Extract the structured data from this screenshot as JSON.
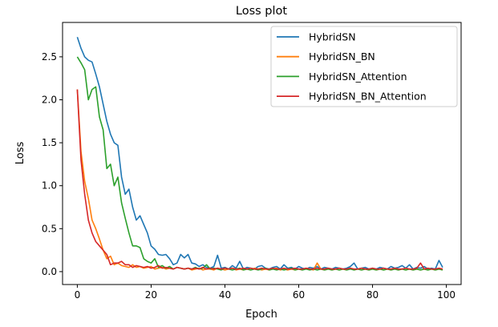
{
  "chart_data": {
    "type": "line",
    "title": "Loss plot",
    "xlabel": "Epoch",
    "ylabel": "Loss",
    "xlim": [
      -4,
      104
    ],
    "ylim": [
      -0.15,
      2.9
    ],
    "xticks": [
      0,
      20,
      40,
      60,
      80,
      100
    ],
    "yticks": [
      0.0,
      0.5,
      1.0,
      1.5,
      2.0,
      2.5
    ],
    "xtick_labels": [
      "0",
      "20",
      "40",
      "60",
      "80",
      "100"
    ],
    "ytick_labels": [
      "0.0",
      "0.5",
      "1.0",
      "1.5",
      "2.0",
      "2.5"
    ],
    "grid": false,
    "legend_position": "top-right",
    "series": [
      {
        "name": "HybridSN",
        "color": "#1f77b4",
        "values": [
          2.73,
          2.6,
          2.5,
          2.46,
          2.44,
          2.3,
          2.15,
          1.95,
          1.75,
          1.6,
          1.5,
          1.47,
          1.1,
          0.9,
          0.96,
          0.75,
          0.6,
          0.65,
          0.55,
          0.45,
          0.3,
          0.26,
          0.2,
          0.19,
          0.2,
          0.15,
          0.08,
          0.1,
          0.2,
          0.16,
          0.2,
          0.1,
          0.09,
          0.06,
          0.08,
          0.05,
          0.04,
          0.06,
          0.19,
          0.04,
          0.05,
          0.03,
          0.07,
          0.04,
          0.12,
          0.03,
          0.05,
          0.04,
          0.03,
          0.06,
          0.07,
          0.04,
          0.03,
          0.05,
          0.06,
          0.03,
          0.08,
          0.04,
          0.05,
          0.03,
          0.06,
          0.04,
          0.03,
          0.05,
          0.04,
          0.06,
          0.03,
          0.05,
          0.04,
          0.03,
          0.05,
          0.04,
          0.03,
          0.04,
          0.06,
          0.1,
          0.03,
          0.04,
          0.05,
          0.03,
          0.04,
          0.03,
          0.05,
          0.04,
          0.03,
          0.06,
          0.04,
          0.05,
          0.07,
          0.04,
          0.08,
          0.03,
          0.05,
          0.04,
          0.06,
          0.03,
          0.04,
          0.03,
          0.13,
          0.05
        ]
      },
      {
        "name": "HybridSN_BN",
        "color": "#ff7f0e",
        "values": [
          2.12,
          1.4,
          1.05,
          0.85,
          0.6,
          0.5,
          0.38,
          0.25,
          0.15,
          0.18,
          0.08,
          0.1,
          0.07,
          0.06,
          0.05,
          0.08,
          0.05,
          0.06,
          0.04,
          0.05,
          0.06,
          0.03,
          0.04,
          0.05,
          0.03,
          0.04,
          0.03,
          0.05,
          0.04,
          0.03,
          0.04,
          0.02,
          0.03,
          0.04,
          0.02,
          0.03,
          0.03,
          0.02,
          0.04,
          0.03,
          0.02,
          0.03,
          0.04,
          0.02,
          0.03,
          0.02,
          0.03,
          0.02,
          0.04,
          0.03,
          0.02,
          0.03,
          0.02,
          0.03,
          0.04,
          0.02,
          0.03,
          0.02,
          0.03,
          0.02,
          0.03,
          0.02,
          0.04,
          0.03,
          0.02,
          0.1,
          0.03,
          0.02,
          0.03,
          0.02,
          0.03,
          0.02,
          0.03,
          0.02,
          0.04,
          0.02,
          0.03,
          0.02,
          0.03,
          0.02,
          0.03,
          0.02,
          0.03,
          0.02,
          0.03,
          0.02,
          0.03,
          0.02,
          0.03,
          0.02,
          0.03,
          0.02,
          0.03,
          0.02,
          0.03,
          0.02,
          0.03,
          0.02,
          0.03,
          0.02
        ]
      },
      {
        "name": "HybridSN_Attention",
        "color": "#2ca02c",
        "values": [
          2.5,
          2.43,
          2.35,
          2.0,
          2.12,
          2.15,
          1.8,
          1.65,
          1.2,
          1.25,
          1.0,
          1.1,
          0.8,
          0.62,
          0.45,
          0.3,
          0.3,
          0.28,
          0.15,
          0.12,
          0.1,
          0.15,
          0.05,
          0.07,
          0.04,
          0.06,
          0.03,
          0.05,
          0.04,
          0.03,
          0.04,
          0.03,
          0.05,
          0.03,
          0.04,
          0.08,
          0.03,
          0.04,
          0.03,
          0.02,
          0.04,
          0.03,
          0.02,
          0.03,
          0.04,
          0.02,
          0.03,
          0.02,
          0.03,
          0.02,
          0.03,
          0.04,
          0.02,
          0.03,
          0.02,
          0.03,
          0.02,
          0.03,
          0.04,
          0.02,
          0.03,
          0.02,
          0.03,
          0.02,
          0.03,
          0.02,
          0.03,
          0.02,
          0.03,
          0.02,
          0.03,
          0.02,
          0.03,
          0.02,
          0.03,
          0.02,
          0.03,
          0.02,
          0.03,
          0.02,
          0.03,
          0.02,
          0.03,
          0.02,
          0.03,
          0.02,
          0.03,
          0.02,
          0.03,
          0.02,
          0.03,
          0.02,
          0.03,
          0.02,
          0.03,
          0.02,
          0.03,
          0.02,
          0.03,
          0.02
        ]
      },
      {
        "name": "HybridSN_BN_Attention",
        "color": "#d62728",
        "values": [
          2.12,
          1.3,
          0.9,
          0.6,
          0.45,
          0.35,
          0.3,
          0.25,
          0.2,
          0.08,
          0.1,
          0.1,
          0.12,
          0.08,
          0.08,
          0.05,
          0.07,
          0.06,
          0.05,
          0.06,
          0.04,
          0.05,
          0.07,
          0.04,
          0.05,
          0.04,
          0.03,
          0.05,
          0.04,
          0.03,
          0.04,
          0.03,
          0.04,
          0.03,
          0.05,
          0.03,
          0.04,
          0.03,
          0.04,
          0.03,
          0.04,
          0.03,
          0.04,
          0.03,
          0.03,
          0.04,
          0.03,
          0.04,
          0.03,
          0.03,
          0.04,
          0.03,
          0.03,
          0.04,
          0.03,
          0.03,
          0.04,
          0.03,
          0.03,
          0.04,
          0.03,
          0.03,
          0.04,
          0.03,
          0.03,
          0.04,
          0.03,
          0.03,
          0.04,
          0.03,
          0.03,
          0.04,
          0.03,
          0.03,
          0.04,
          0.03,
          0.03,
          0.04,
          0.03,
          0.03,
          0.04,
          0.03,
          0.03,
          0.04,
          0.03,
          0.03,
          0.04,
          0.03,
          0.03,
          0.04,
          0.03,
          0.03,
          0.04,
          0.1,
          0.03,
          0.04,
          0.03,
          0.03,
          0.04,
          0.03
        ]
      }
    ]
  }
}
